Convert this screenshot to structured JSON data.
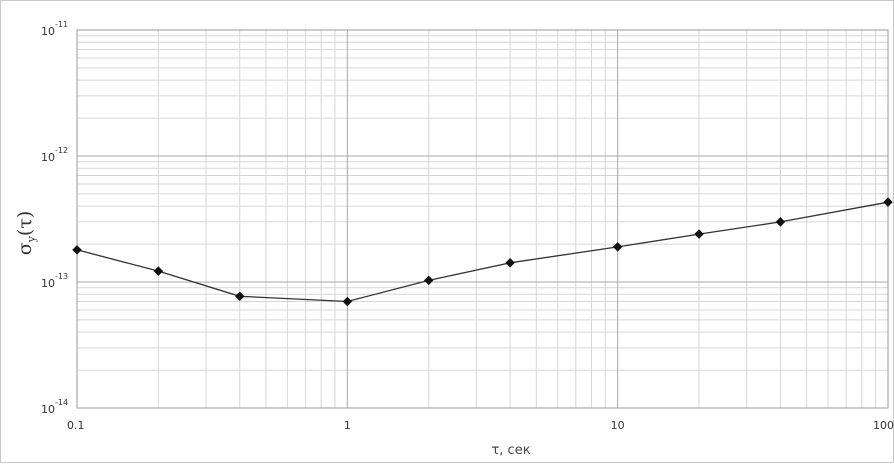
{
  "chart_data": {
    "type": "line",
    "xlabel": "τ, сек",
    "ylabel": {
      "main": "σ",
      "sub": "y",
      "tail": "(τ)"
    },
    "x_scale": "log",
    "y_scale": "log",
    "xlim": [
      0.1,
      100
    ],
    "ylim": [
      1e-14,
      1e-11
    ],
    "grid": true,
    "x_ticks": [
      "0.1",
      "1",
      "10",
      "100"
    ],
    "y_ticks": [
      {
        "base": "10",
        "exp": "-11"
      },
      {
        "base": "10",
        "exp": "-12"
      },
      {
        "base": "10",
        "exp": "-13"
      },
      {
        "base": "10",
        "exp": "-14"
      }
    ],
    "series": [
      {
        "x": [
          0.1,
          0.2,
          0.4,
          1,
          2,
          4,
          10,
          20,
          40,
          100
        ],
        "y": [
          1.8e-13,
          1.22e-13,
          7.7e-14,
          7e-14,
          1.03e-13,
          1.42e-13,
          1.9e-13,
          2.4e-13,
          3e-13,
          4.3e-13
        ],
        "color": "#333333",
        "marker": "diamond"
      }
    ]
  }
}
